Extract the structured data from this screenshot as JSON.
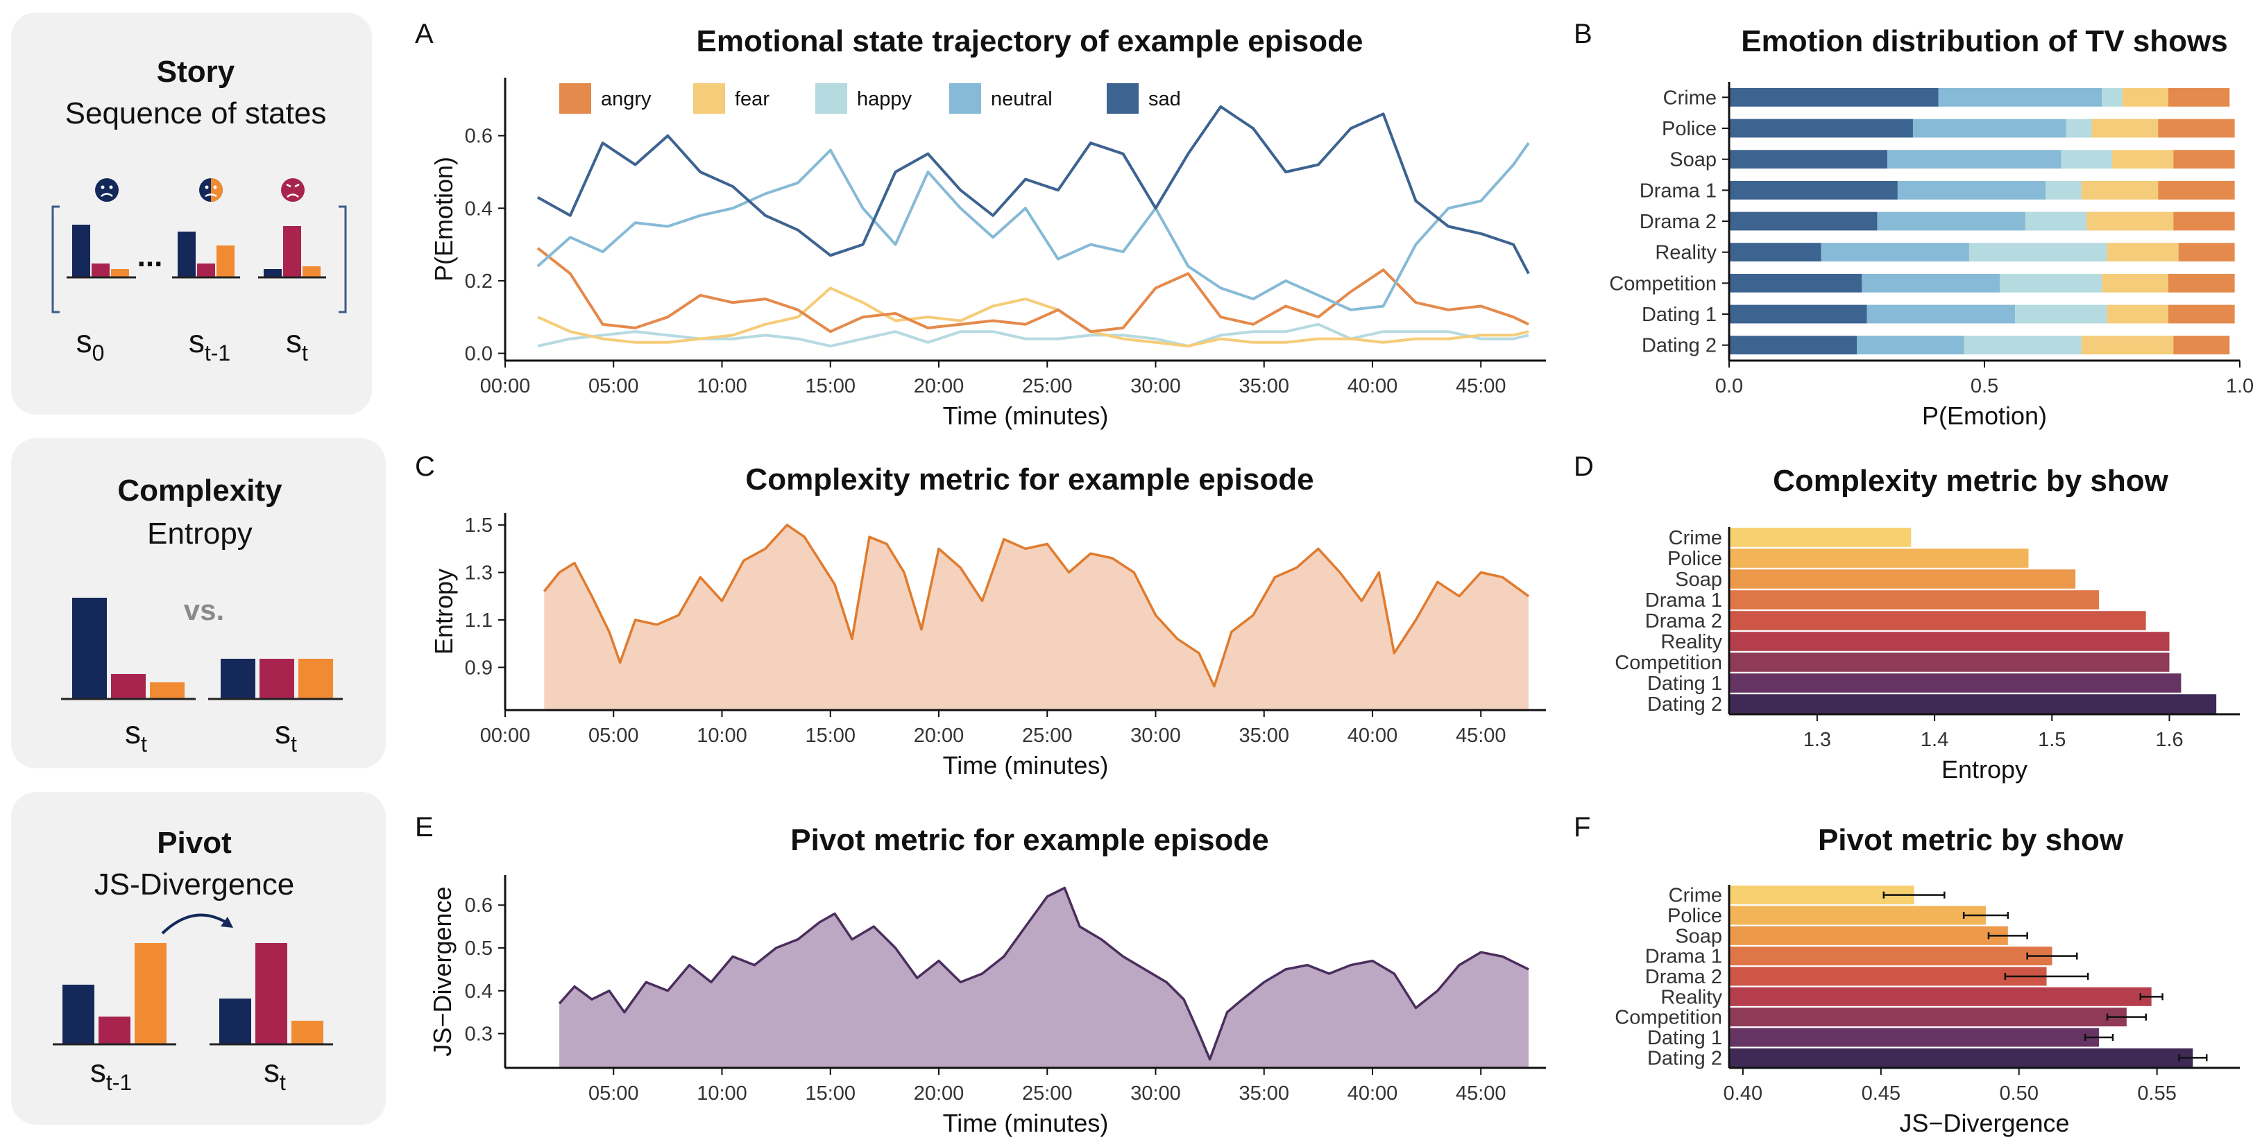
{
  "colors": {
    "emotions": {
      "angry": "#E48A4C",
      "fear": "#F5CC79",
      "happy": "#B5DAE0",
      "neutral": "#86BAD6",
      "sad": "#3D6390"
    },
    "icon_navy": "#14285A",
    "icon_crimson": "#A8244E",
    "icon_orange": "#F08B33",
    "complexity_fill": "#F4D2BD",
    "complexity_line": "#E07B2E",
    "pivot_fill": "#BCA8C2",
    "pivot_line": "#4A2E5E",
    "show_gradient": [
      "#F7D06F",
      "#F2B457",
      "#EC994B",
      "#DF7647",
      "#CD5646",
      "#B43E4B",
      "#8F3A57",
      "#653462",
      "#3E2A55"
    ]
  },
  "sidebar": {
    "story": {
      "title": "Story",
      "subtitle": "Sequence of states",
      "ellipsis": "...",
      "labels": {
        "s0": "s",
        "s0_sub": "0",
        "st1": "s",
        "st1_sub": "t-1",
        "st": "s",
        "st_sub": "t"
      }
    },
    "complexity": {
      "title": "Complexity",
      "subtitle": "Entropy",
      "vs": "vs.",
      "labels": {
        "a": "s",
        "a_sub": "t",
        "b": "s",
        "b_sub": "t"
      }
    },
    "pivot": {
      "title": "Pivot",
      "subtitle": "JS-Divergence",
      "labels": {
        "a": "s",
        "a_sub": "t-1",
        "b": "s",
        "b_sub": "t"
      }
    }
  },
  "panel_letters": {
    "A": "A",
    "B": "B",
    "C": "C",
    "D": "D",
    "E": "E",
    "F": "F"
  },
  "chart_data": [
    {
      "id": "A",
      "type": "line",
      "title": "Emotional state trajectory of example episode",
      "xlabel": "Time (minutes)",
      "ylabel": "P(Emotion)",
      "xlim": [
        0,
        48
      ],
      "ylim": [
        -0.02,
        0.76
      ],
      "xticks": [
        0,
        5,
        10,
        15,
        20,
        25,
        30,
        35,
        40,
        45
      ],
      "xtick_labels": [
        "00:00",
        "05:00",
        "10:00",
        "15:00",
        "20:00",
        "25:00",
        "30:00",
        "35:00",
        "40:00",
        "45:00"
      ],
      "yticks": [
        0.0,
        0.2,
        0.4,
        0.6
      ],
      "ytick_labels": [
        "0.0",
        "0.2",
        "0.4",
        "0.6"
      ],
      "legend": [
        "angry",
        "fear",
        "happy",
        "neutral",
        "sad"
      ],
      "x": [
        1.5,
        3,
        4.5,
        6,
        7.5,
        9,
        10.5,
        12,
        13.5,
        15,
        16.5,
        18,
        19.5,
        21,
        22.5,
        24,
        25.5,
        27,
        28.5,
        30,
        31.5,
        33,
        34.5,
        36,
        37.5,
        39,
        40.5,
        42,
        43.5,
        45,
        46.5,
        47.2
      ],
      "series": [
        {
          "name": "sad",
          "values": [
            0.43,
            0.38,
            0.58,
            0.52,
            0.6,
            0.5,
            0.46,
            0.38,
            0.34,
            0.27,
            0.3,
            0.5,
            0.55,
            0.45,
            0.38,
            0.48,
            0.45,
            0.58,
            0.55,
            0.4,
            0.55,
            0.68,
            0.62,
            0.5,
            0.52,
            0.62,
            0.66,
            0.42,
            0.35,
            0.33,
            0.3,
            0.22
          ]
        },
        {
          "name": "neutral",
          "values": [
            0.24,
            0.32,
            0.28,
            0.36,
            0.35,
            0.38,
            0.4,
            0.44,
            0.47,
            0.56,
            0.4,
            0.3,
            0.5,
            0.4,
            0.32,
            0.4,
            0.26,
            0.3,
            0.28,
            0.4,
            0.24,
            0.18,
            0.15,
            0.2,
            0.16,
            0.12,
            0.13,
            0.3,
            0.4,
            0.42,
            0.52,
            0.58
          ]
        },
        {
          "name": "angry",
          "values": [
            0.29,
            0.22,
            0.08,
            0.07,
            0.1,
            0.16,
            0.14,
            0.15,
            0.12,
            0.06,
            0.1,
            0.11,
            0.07,
            0.08,
            0.09,
            0.08,
            0.12,
            0.06,
            0.07,
            0.18,
            0.22,
            0.1,
            0.08,
            0.13,
            0.1,
            0.17,
            0.23,
            0.14,
            0.12,
            0.13,
            0.1,
            0.08
          ]
        },
        {
          "name": "fear",
          "values": [
            0.1,
            0.06,
            0.04,
            0.03,
            0.03,
            0.04,
            0.05,
            0.08,
            0.1,
            0.18,
            0.14,
            0.09,
            0.1,
            0.09,
            0.13,
            0.15,
            0.12,
            0.06,
            0.04,
            0.03,
            0.02,
            0.04,
            0.03,
            0.03,
            0.04,
            0.04,
            0.03,
            0.04,
            0.04,
            0.05,
            0.05,
            0.06
          ]
        },
        {
          "name": "happy",
          "values": [
            0.02,
            0.04,
            0.05,
            0.06,
            0.05,
            0.04,
            0.04,
            0.05,
            0.04,
            0.02,
            0.04,
            0.06,
            0.03,
            0.06,
            0.06,
            0.04,
            0.04,
            0.05,
            0.05,
            0.04,
            0.02,
            0.05,
            0.06,
            0.06,
            0.08,
            0.04,
            0.06,
            0.06,
            0.06,
            0.04,
            0.04,
            0.05
          ]
        }
      ]
    },
    {
      "id": "B",
      "type": "bar",
      "orientation": "horizontal",
      "stacked": true,
      "title": "Emotion distribution of TV shows",
      "xlabel": "P(Emotion)",
      "ylabel": "",
      "xlim": [
        0,
        1
      ],
      "xticks": [
        0,
        0.5,
        1
      ],
      "xtick_labels": [
        "0.0",
        "0.5",
        "1.0"
      ],
      "categories": [
        "Crime",
        "Police",
        "Soap",
        "Drama 1",
        "Drama 2",
        "Reality",
        "Competition",
        "Dating 1",
        "Dating 2"
      ],
      "series": [
        {
          "name": "sad",
          "values": [
            0.41,
            0.36,
            0.31,
            0.33,
            0.29,
            0.18,
            0.26,
            0.27,
            0.25
          ]
        },
        {
          "name": "neutral",
          "values": [
            0.32,
            0.3,
            0.34,
            0.29,
            0.29,
            0.29,
            0.27,
            0.29,
            0.21
          ]
        },
        {
          "name": "happy",
          "values": [
            0.04,
            0.05,
            0.1,
            0.07,
            0.12,
            0.27,
            0.2,
            0.18,
            0.23
          ]
        },
        {
          "name": "fear",
          "values": [
            0.09,
            0.13,
            0.12,
            0.15,
            0.17,
            0.14,
            0.13,
            0.12,
            0.18
          ]
        },
        {
          "name": "angry",
          "values": [
            0.12,
            0.15,
            0.12,
            0.15,
            0.12,
            0.11,
            0.13,
            0.13,
            0.11
          ]
        }
      ]
    },
    {
      "id": "C",
      "type": "area",
      "title": "Complexity metric for example episode",
      "xlabel": "Time (minutes)",
      "ylabel": "Entropy",
      "xlim": [
        0,
        48
      ],
      "ylim": [
        0.72,
        1.55
      ],
      "xticks": [
        0,
        5,
        10,
        15,
        20,
        25,
        30,
        35,
        40,
        45
      ],
      "xtick_labels": [
        "00:00",
        "05:00",
        "10:00",
        "15:00",
        "20:00",
        "25:00",
        "30:00",
        "35:00",
        "40:00",
        "45:00"
      ],
      "yticks": [
        0.9,
        1.1,
        1.3,
        1.5
      ],
      "ytick_labels": [
        "0.9",
        "1.1",
        "1.3",
        "1.5"
      ],
      "x": [
        1.8,
        2.5,
        3.2,
        4.0,
        4.8,
        5.3,
        6.0,
        7.0,
        8.0,
        9.0,
        10.0,
        11.0,
        12.0,
        13.0,
        13.8,
        14.5,
        15.2,
        16.0,
        16.8,
        17.6,
        18.4,
        19.2,
        20.0,
        21.0,
        22.0,
        23.0,
        24.0,
        25.0,
        26.0,
        27.0,
        28.0,
        29.0,
        30.0,
        31.0,
        32.0,
        32.7,
        33.5,
        34.5,
        35.5,
        36.5,
        37.5,
        38.5,
        39.5,
        40.3,
        41.0,
        42.0,
        43.0,
        44.0,
        45.0,
        46.0,
        47.2
      ],
      "values": [
        1.22,
        1.3,
        1.34,
        1.2,
        1.05,
        0.92,
        1.1,
        1.08,
        1.12,
        1.28,
        1.18,
        1.35,
        1.4,
        1.5,
        1.45,
        1.35,
        1.25,
        1.02,
        1.45,
        1.42,
        1.3,
        1.06,
        1.4,
        1.32,
        1.18,
        1.44,
        1.4,
        1.42,
        1.3,
        1.38,
        1.36,
        1.3,
        1.12,
        1.02,
        0.96,
        0.82,
        1.05,
        1.12,
        1.28,
        1.32,
        1.4,
        1.3,
        1.18,
        1.3,
        0.96,
        1.1,
        1.26,
        1.2,
        1.3,
        1.28,
        1.2
      ]
    },
    {
      "id": "D",
      "type": "bar",
      "orientation": "horizontal",
      "title": "Complexity metric by show",
      "xlabel": "Entropy",
      "ylabel": "",
      "xlim": [
        1.225,
        1.66
      ],
      "xticks": [
        1.3,
        1.4,
        1.5,
        1.6
      ],
      "xtick_labels": [
        "1.3",
        "1.4",
        "1.5",
        "1.6"
      ],
      "categories": [
        "Crime",
        "Police",
        "Soap",
        "Drama 1",
        "Drama 2",
        "Reality",
        "Competition",
        "Dating 1",
        "Dating 2"
      ],
      "values": [
        1.38,
        1.48,
        1.52,
        1.54,
        1.58,
        1.6,
        1.6,
        1.61,
        1.64
      ]
    },
    {
      "id": "E",
      "type": "area",
      "title": "Pivot metric for example episode",
      "xlabel": "Time (minutes)",
      "ylabel": "JS−Divergence",
      "xlim": [
        0,
        48
      ],
      "ylim": [
        0.22,
        0.67
      ],
      "xticks": [
        5,
        10,
        15,
        20,
        25,
        30,
        35,
        40,
        45
      ],
      "xtick_labels": [
        "05:00",
        "10:00",
        "15:00",
        "20:00",
        "25:00",
        "30:00",
        "35:00",
        "40:00",
        "45:00"
      ],
      "yticks": [
        0.3,
        0.4,
        0.5,
        0.6
      ],
      "ytick_labels": [
        "0.3",
        "0.4",
        "0.5",
        "0.6"
      ],
      "x": [
        2.5,
        3.2,
        4.0,
        4.8,
        5.5,
        6.5,
        7.5,
        8.5,
        9.5,
        10.5,
        11.5,
        12.5,
        13.5,
        14.5,
        15.2,
        16.0,
        17.0,
        18.0,
        19.0,
        20.0,
        21.0,
        22.0,
        23.0,
        24.0,
        25.0,
        25.8,
        26.5,
        27.5,
        28.5,
        29.5,
        30.5,
        31.3,
        32.0,
        32.5,
        33.3,
        34.0,
        35.0,
        36.0,
        37.0,
        38.0,
        39.0,
        40.0,
        41.0,
        42.0,
        43.0,
        44.0,
        45.0,
        46.0,
        47.2
      ],
      "values": [
        0.37,
        0.41,
        0.38,
        0.4,
        0.35,
        0.42,
        0.4,
        0.46,
        0.42,
        0.48,
        0.46,
        0.5,
        0.52,
        0.56,
        0.58,
        0.52,
        0.55,
        0.5,
        0.43,
        0.47,
        0.42,
        0.44,
        0.48,
        0.55,
        0.62,
        0.64,
        0.55,
        0.52,
        0.48,
        0.45,
        0.42,
        0.38,
        0.3,
        0.24,
        0.35,
        0.38,
        0.42,
        0.45,
        0.46,
        0.44,
        0.46,
        0.47,
        0.44,
        0.36,
        0.4,
        0.46,
        0.49,
        0.48,
        0.45
      ]
    },
    {
      "id": "F",
      "type": "bar",
      "orientation": "horizontal",
      "error_bars": true,
      "title": "Pivot metric by show",
      "xlabel": "JS−Divergence",
      "ylabel": "",
      "xlim": [
        0.395,
        0.58
      ],
      "xticks": [
        0.4,
        0.45,
        0.5,
        0.55
      ],
      "xtick_labels": [
        "0.40",
        "0.45",
        "0.50",
        "0.55"
      ],
      "categories": [
        "Crime",
        "Police",
        "Soap",
        "Drama 1",
        "Drama 2",
        "Reality",
        "Competition",
        "Dating 1",
        "Dating 2"
      ],
      "values": [
        0.462,
        0.488,
        0.496,
        0.512,
        0.51,
        0.548,
        0.539,
        0.529,
        0.563
      ],
      "errors": [
        0.011,
        0.008,
        0.007,
        0.009,
        0.015,
        0.004,
        0.007,
        0.005,
        0.005
      ]
    }
  ]
}
